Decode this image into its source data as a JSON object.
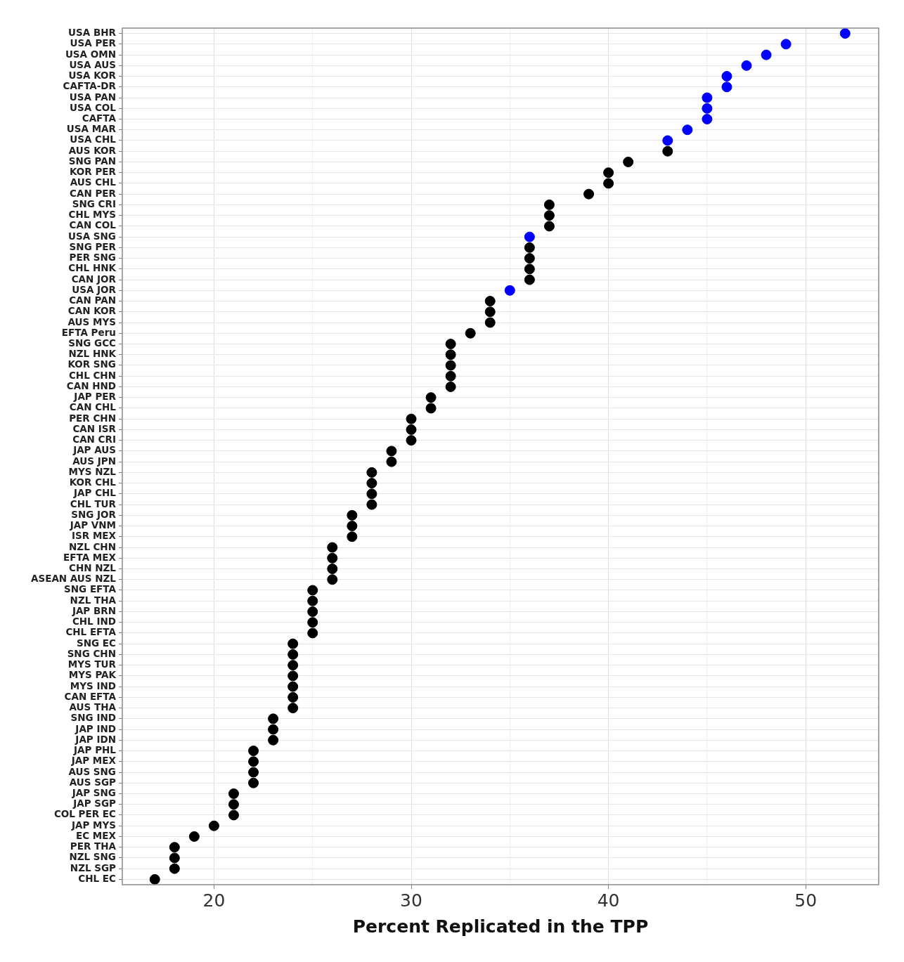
{
  "chart_data": {
    "type": "scatter",
    "orientation": "horizontal",
    "xlabel": "Percent Replicated in the TPP",
    "categories": [
      "USA BHR",
      "USA PER",
      "USA OMN",
      "USA AUS",
      "USA KOR",
      "CAFTA-DR",
      "USA PAN",
      "USA COL",
      "CAFTA",
      "USA MAR",
      "USA CHL",
      "AUS KOR",
      "SNG PAN",
      "KOR PER",
      "AUS CHL",
      "CAN PER",
      "SNG CRI",
      "CHL MYS",
      "CAN COL",
      "USA SNG",
      "SNG PER",
      "PER SNG",
      "CHL HNK",
      "CAN JOR",
      "USA JOR",
      "CAN PAN",
      "CAN KOR",
      "AUS MYS",
      "EFTA Peru",
      "SNG GCC",
      "NZL HNK",
      "KOR SNG",
      "CHL CHN",
      "CAN HND",
      "JAP PER",
      "CAN CHL",
      "PER CHN",
      "CAN ISR",
      "CAN CRI",
      "JAP AUS",
      "AUS JPN",
      "MYS NZL",
      "KOR CHL",
      "JAP CHL",
      "CHL TUR",
      "SNG JOR",
      "JAP VNM",
      "ISR MEX",
      "NZL CHN",
      "EFTA MEX",
      "CHN NZL",
      "ASEAN AUS NZL",
      "SNG EFTA",
      "NZL THA",
      "JAP BRN",
      "CHL IND",
      "CHL EFTA",
      "SNG EC",
      "SNG CHN",
      "MYS TUR",
      "MYS PAK",
      "MYS IND",
      "CAN EFTA",
      "AUS THA",
      "SNG IND",
      "JAP IND",
      "JAP IDN",
      "JAP PHL",
      "JAP MEX",
      "AUS SNG",
      "AUS SGP",
      "JAP SNG",
      "JAP SGP",
      "COL PER EC",
      "JAP MYS",
      "EC MEX",
      "PER THA",
      "NZL SNG",
      "NZL SGP",
      "CHL EC"
    ],
    "values": [
      52,
      49,
      48,
      47,
      46,
      46,
      45,
      45,
      45,
      44,
      43,
      43,
      41,
      40,
      40,
      39,
      37,
      37,
      37,
      36,
      36,
      36,
      36,
      36,
      35,
      34,
      34,
      34,
      33,
      32,
      32,
      32,
      32,
      32,
      31,
      31,
      30,
      30,
      30,
      29,
      29,
      28,
      28,
      28,
      28,
      27,
      27,
      27,
      26,
      26,
      26,
      26,
      25,
      25,
      25,
      25,
      25,
      24,
      24,
      24,
      24,
      24,
      24,
      24,
      23,
      23,
      23,
      22,
      22,
      22,
      22,
      21,
      21,
      21,
      20,
      19,
      18,
      18,
      18,
      17
    ],
    "colors": [
      "#0000ff",
      "#0000ff",
      "#0000ff",
      "#0000ff",
      "#0000ff",
      "#0000ff",
      "#0000ff",
      "#0000ff",
      "#0000ff",
      "#0000ff",
      "#0000ff",
      "#000000",
      "#000000",
      "#000000",
      "#000000",
      "#000000",
      "#000000",
      "#000000",
      "#000000",
      "#0000ff",
      "#000000",
      "#000000",
      "#000000",
      "#000000",
      "#0000ff",
      "#000000",
      "#000000",
      "#000000",
      "#000000",
      "#000000",
      "#000000",
      "#000000",
      "#000000",
      "#000000",
      "#000000",
      "#000000",
      "#000000",
      "#000000",
      "#000000",
      "#000000",
      "#000000",
      "#000000",
      "#000000",
      "#000000",
      "#000000",
      "#000000",
      "#000000",
      "#000000",
      "#000000",
      "#000000",
      "#000000",
      "#000000",
      "#000000",
      "#000000",
      "#000000",
      "#000000",
      "#000000",
      "#000000",
      "#000000",
      "#000000",
      "#000000",
      "#000000",
      "#000000",
      "#000000",
      "#000000",
      "#000000",
      "#000000",
      "#000000",
      "#000000",
      "#000000",
      "#000000",
      "#000000",
      "#000000",
      "#000000",
      "#000000",
      "#000000",
      "#000000",
      "#000000",
      "#000000",
      "#000000"
    ],
    "xlim": [
      15.35,
      53.7
    ],
    "xticks": [
      20,
      {
        "value": 25,
        "label": null
      },
      30,
      {
        "value": 35,
        "label": null
      },
      40,
      {
        "value": 45,
        "label": null
      },
      50
    ],
    "grid": true,
    "marker": "circle"
  }
}
